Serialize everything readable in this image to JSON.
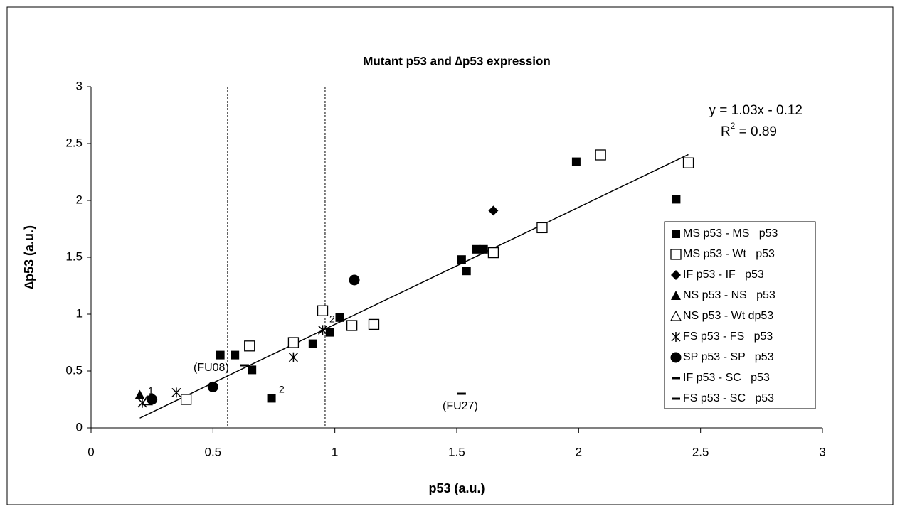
{
  "chart_data": {
    "type": "scatter",
    "title": "Mutant p53 and ∆p53 expression",
    "x_label": "p53 (a.u.)",
    "y_label": "∆p53 (a.u.)",
    "xlim": [
      0,
      3
    ],
    "xticks": [
      0,
      0.5,
      1,
      1.5,
      2,
      2.5,
      3
    ],
    "ylim": [
      0,
      3
    ],
    "yticks": [
      0,
      0.5,
      1,
      1.5,
      2,
      2.5,
      3
    ],
    "reference_lines_x": [
      0.56,
      0.96
    ],
    "trendline": {
      "slope": 1.03,
      "intercept": -0.12,
      "x_range": [
        0.2,
        2.45
      ],
      "equation": "y = 1.03x - 0.12",
      "r2_prefix": "R",
      "r2_sup": "2",
      "r2_value": " = 0.89"
    },
    "legend_position": "right",
    "series": [
      {
        "name": "MS p53 - MS   p53",
        "marker": "square",
        "color": "#000000",
        "x": [
          0.53,
          0.59,
          0.66,
          0.74,
          0.91,
          0.98,
          1.02,
          1.52,
          1.54,
          1.58,
          1.61,
          1.99,
          2.4
        ],
        "values": [
          0.64,
          0.64,
          0.51,
          0.26,
          0.74,
          0.84,
          0.97,
          1.48,
          1.38,
          1.57,
          1.57,
          2.34,
          2.01
        ]
      },
      {
        "name": "MS p53 - Wt   p53",
        "marker": "open-square",
        "color": "#000000",
        "x": [
          0.39,
          0.65,
          0.83,
          0.95,
          1.07,
          1.16,
          1.65,
          1.85,
          2.09,
          2.45
        ],
        "values": [
          0.25,
          0.72,
          0.75,
          1.03,
          0.9,
          0.91,
          1.54,
          1.76,
          2.4,
          2.33
        ]
      },
      {
        "name": "IF p53 - IF   p53",
        "marker": "diamond",
        "color": "#000000",
        "x": [
          1.65
        ],
        "values": [
          1.91
        ]
      },
      {
        "name": "NS p53 - NS   p53",
        "marker": "triangle",
        "color": "#000000",
        "x": [
          0.2
        ],
        "values": [
          0.29
        ]
      },
      {
        "name": "NS p53 - Wt dp53",
        "marker": "open-triangle",
        "color": "#000000",
        "x": [
          0.23
        ],
        "values": [
          0.24
        ]
      },
      {
        "name": "FS p53 - FS   p53",
        "marker": "asterisk",
        "color": "#000000",
        "x": [
          0.21,
          0.35,
          0.83,
          0.95
        ],
        "values": [
          0.22,
          0.31,
          0.62,
          0.86
        ]
      },
      {
        "name": "SP p53 - SP   p53",
        "marker": "circle",
        "color": "#000000",
        "x": [
          0.25,
          0.5,
          1.08
        ],
        "values": [
          0.25,
          0.36,
          1.3
        ]
      },
      {
        "name": "IF p53 - SC   p53",
        "marker": "dash",
        "color": "#000000",
        "x": [
          0.63
        ],
        "values": [
          0.55
        ]
      },
      {
        "name": "FS p53 - SC   p53",
        "marker": "dash",
        "color": "#000000",
        "x": [
          1.52
        ],
        "values": [
          0.3
        ]
      }
    ],
    "annotations": [
      "1",
      "2",
      "2",
      "(FU08)",
      "(FU27)"
    ]
  }
}
